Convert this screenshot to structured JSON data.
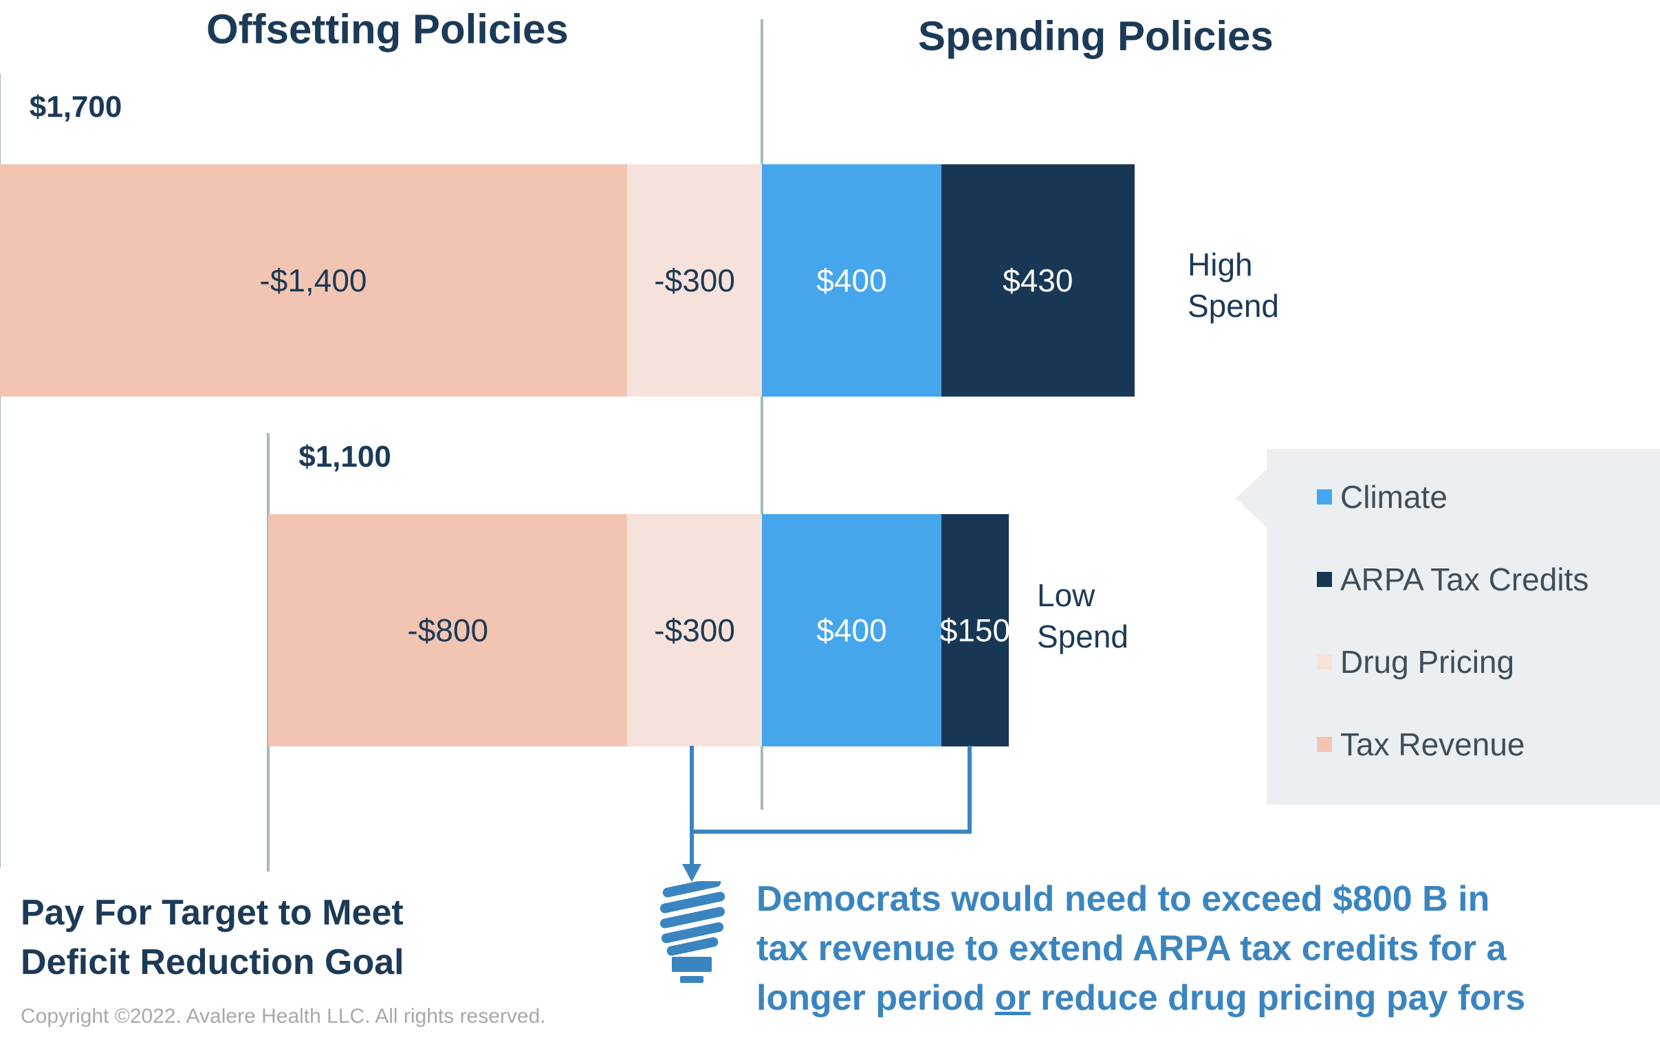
{
  "headings": {
    "left": "Offsetting Policies",
    "right": "Spending Policies"
  },
  "chart_data": {
    "type": "bar",
    "orientation": "horizontal",
    "stacked": true,
    "title": "",
    "units": "$ billions",
    "rows": [
      {
        "label": "High Spend",
        "total_label": "$1,700",
        "segments": [
          {
            "series": "Tax Revenue",
            "value": -1400,
            "label": "-$1,400"
          },
          {
            "series": "Drug Pricing",
            "value": -300,
            "label": "-$300"
          },
          {
            "series": "Climate",
            "value": 400,
            "label": "$400"
          },
          {
            "series": "ARPA Tax Credits",
            "value": 430,
            "label": "$430"
          }
        ]
      },
      {
        "label": "Low Spend",
        "total_label": "$1,100",
        "segments": [
          {
            "series": "Tax Revenue",
            "value": -800,
            "label": "-$800"
          },
          {
            "series": "Drug Pricing",
            "value": -300,
            "label": "-$300"
          },
          {
            "series": "Climate",
            "value": 400,
            "label": "$400"
          },
          {
            "series": "ARPA Tax Credits",
            "value": 150,
            "label": "$150"
          }
        ]
      }
    ],
    "legend": {
      "placement": "right",
      "entries": [
        "Climate",
        "ARPA Tax Credits",
        "Drug Pricing",
        "Tax Revenue"
      ]
    },
    "colors": {
      "Climate": "#46a6ec",
      "ARPA Tax Credits": "#183754",
      "Drug Pricing": "#f6e2da",
      "Tax Revenue": "#f2c5b2"
    },
    "label_colors": {
      "Climate": "#ffffff",
      "ARPA Tax Credits": "#ffffff",
      "Drug Pricing": "#1b3a57",
      "Tax Revenue": "#1b3a57"
    }
  },
  "footer": {
    "target_label_line1": "Pay For Target to Meet",
    "target_label_line2": "Deficit Reduction Goal",
    "callout_line1": "Democrats would need to exceed $800 B in",
    "callout_line2": "tax revenue to extend ARPA tax credits for a",
    "callout_line3_pre": "longer period ",
    "callout_line3_or": "or",
    "callout_line3_post": " reduce drug pricing pay fors",
    "copyright": "Copyright ©2022. Avalere Health LLC. All rights reserved."
  },
  "icons": {
    "callout_icon": "lightbulb-icon"
  },
  "colors": {
    "accent": "#3a85c0",
    "heading": "#1b3a57",
    "axis_line": "#a9b6bf",
    "legend_background": "#eceff1"
  }
}
